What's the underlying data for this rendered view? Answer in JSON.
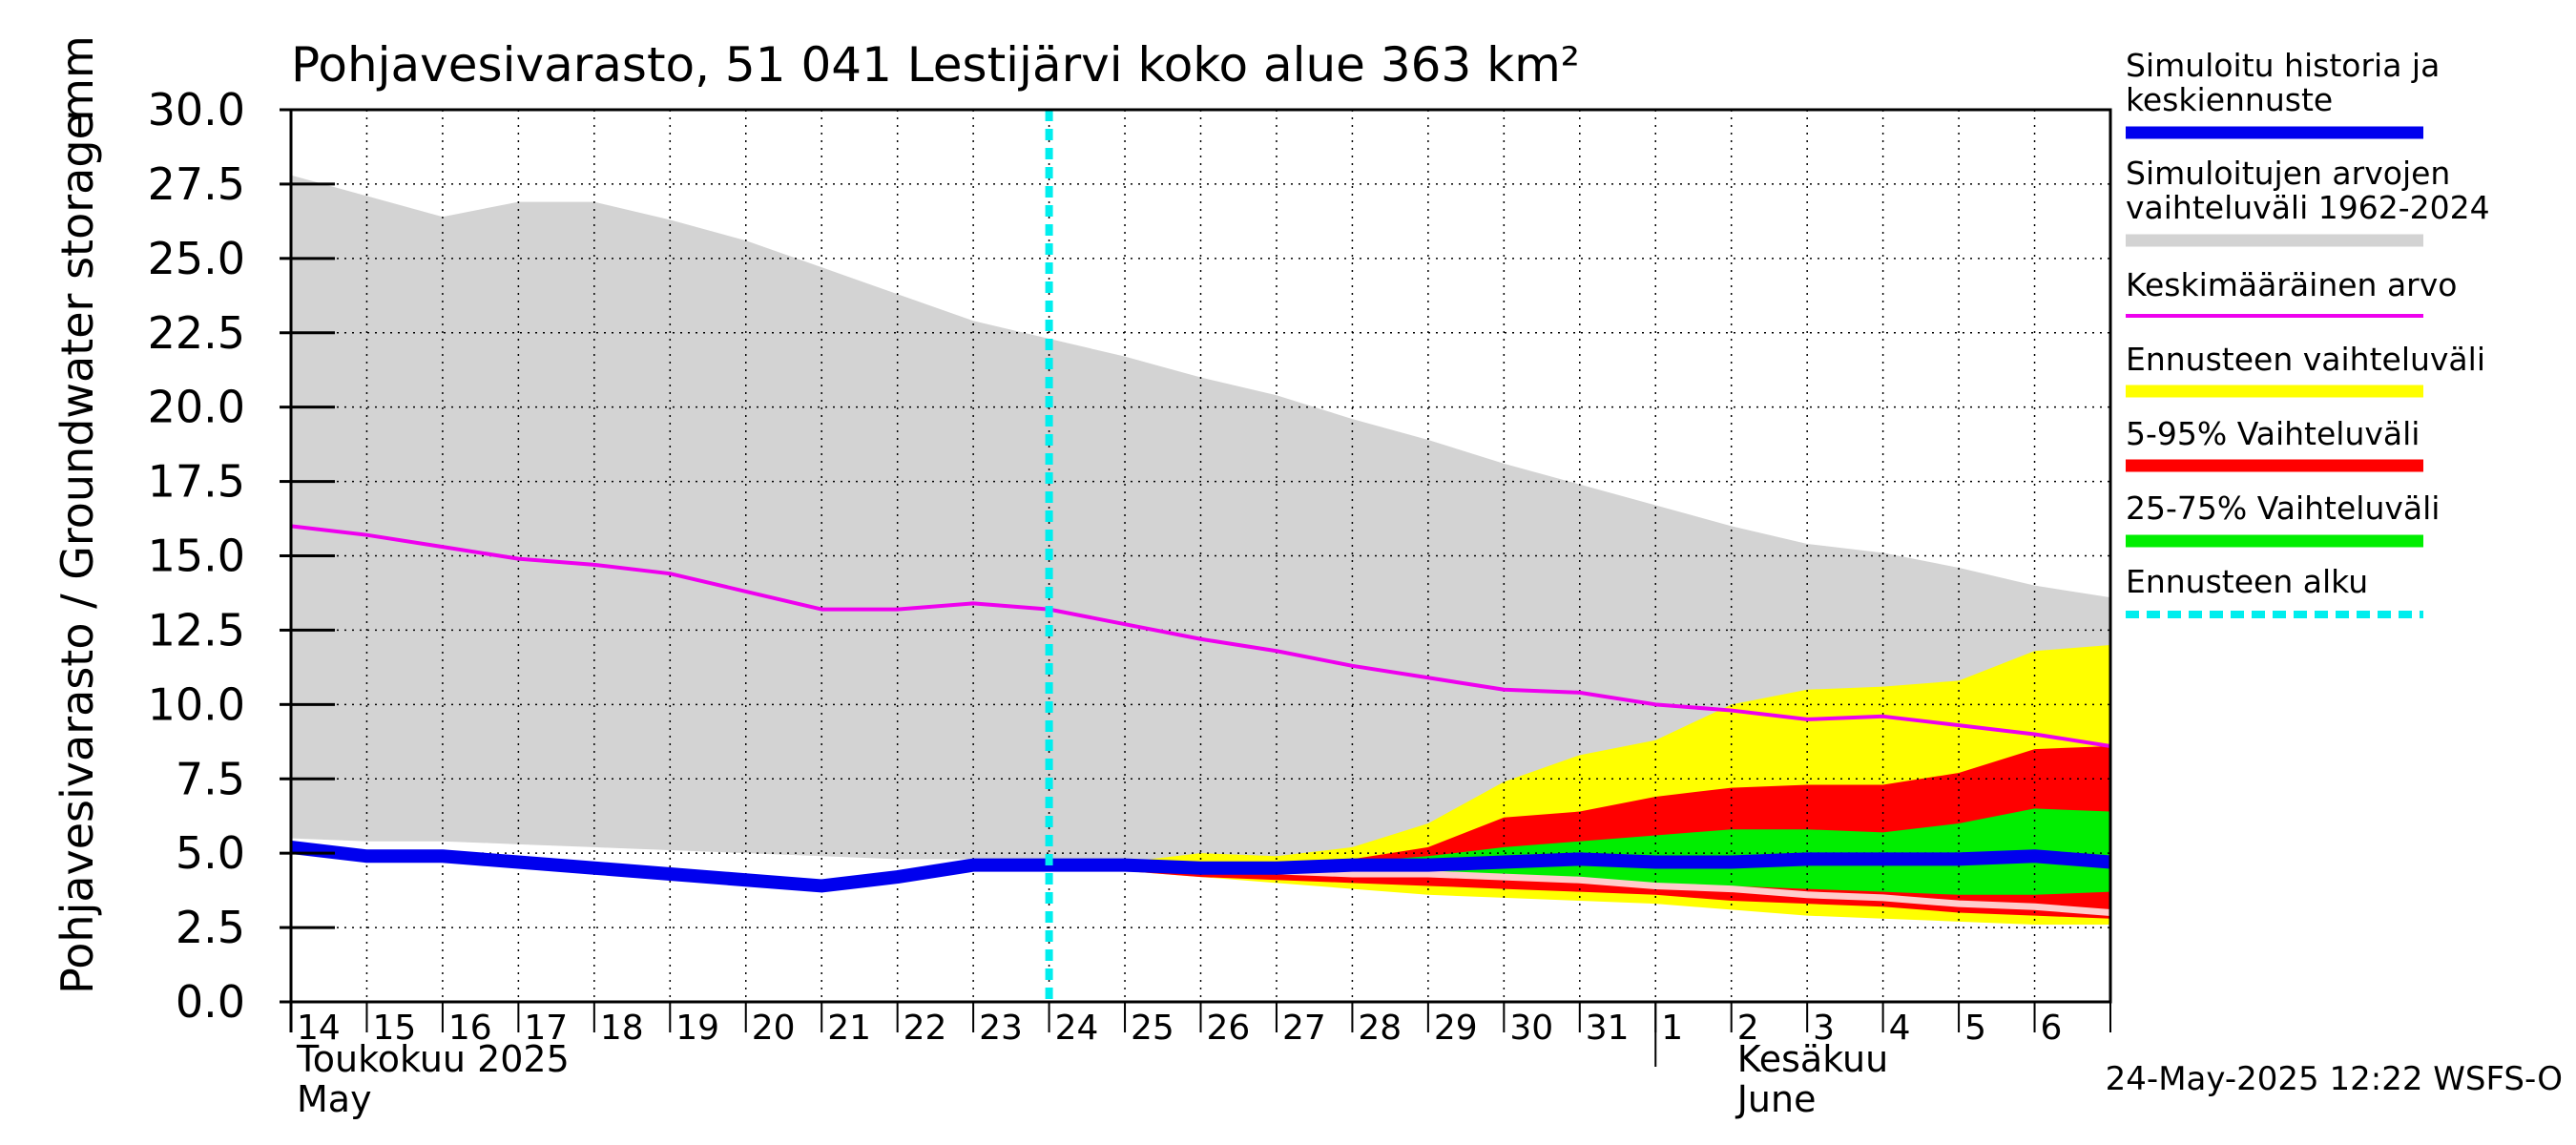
{
  "chart_data": {
    "type": "area",
    "title": "Pohjavesivarasto, 51 041 Lestijärvi koko alue 363 km²",
    "ylabel": "Pohjavesivarasto / Groundwater storage",
    "yunit": "mm",
    "ylim": [
      0,
      30
    ],
    "yticks": [
      "30.0",
      "27.5",
      "25.0",
      "22.5",
      "20.0",
      "17.5",
      "15.0",
      "12.5",
      "10.0",
      "7.5",
      "5.0",
      "2.5",
      "0.0"
    ],
    "x_start_day": 14,
    "x_end_day": 38,
    "day_labels": [
      "14",
      "15",
      "16",
      "17",
      "18",
      "19",
      "20",
      "21",
      "22",
      "23",
      "24",
      "25",
      "26",
      "27",
      "28",
      "29",
      "30",
      "31",
      "1",
      "2",
      "3",
      "4",
      "5",
      "6"
    ],
    "month_labels": [
      {
        "fi": "Toukokuu  2025",
        "en": "May",
        "day": 14
      },
      {
        "fi": "Kesäkuu",
        "en": "June",
        "day": 33
      }
    ],
    "forecast_start_day": 24,
    "grid": true,
    "legend_position": "right",
    "legend": [
      {
        "label": "Simuloitu historia ja keskiennuste",
        "color": "#0000ee",
        "style": "thick"
      },
      {
        "label": "Simuloitujen arvojen vaihteluväli 1962-2024",
        "color": "#d3d3d3",
        "style": "band"
      },
      {
        "label": "Keskimääräinen arvo",
        "color": "#ee00ee",
        "style": "line"
      },
      {
        "label": "Ennusteen vaihteluväli",
        "color": "#ffff00",
        "style": "band"
      },
      {
        "label": "5-95% Vaihteluväli",
        "color": "#ff0000",
        "style": "band"
      },
      {
        "label": "25-75% Vaihteluväli",
        "color": "#00ee00",
        "style": "band"
      },
      {
        "label": "Ennusteen alku",
        "color": "#00eeee",
        "style": "dashed"
      }
    ],
    "series": [
      {
        "key": "hist_range",
        "color": "#d3d3d3",
        "x": [
          14,
          15,
          16,
          17,
          18,
          19,
          20,
          21,
          22,
          23,
          24,
          25,
          26,
          27,
          28,
          29,
          30,
          31,
          32,
          33,
          34,
          35,
          36,
          37,
          38
        ],
        "upper": [
          27.8,
          27.1,
          26.4,
          26.9,
          26.9,
          26.3,
          25.6,
          24.7,
          23.8,
          22.9,
          22.3,
          21.7,
          21.0,
          20.4,
          19.6,
          18.9,
          18.1,
          17.4,
          16.7,
          16.0,
          15.4,
          15.1,
          14.6,
          14.0,
          13.6
        ],
        "lower": [
          5.5,
          5.4,
          5.4,
          5.3,
          5.2,
          5.1,
          5.0,
          4.9,
          4.8,
          4.8,
          4.7,
          4.6,
          4.5,
          4.4,
          4.3,
          4.2,
          4.1,
          4.0,
          3.8,
          3.6,
          3.4,
          3.2,
          3.0,
          2.8,
          2.6
        ]
      },
      {
        "key": "forecast_range",
        "color": "#ffff00",
        "x": [
          24,
          25,
          26,
          27,
          28,
          29,
          30,
          31,
          32,
          33,
          34,
          35,
          36,
          37,
          38
        ],
        "upper": [
          4.6,
          4.7,
          5.0,
          4.9,
          5.2,
          6.0,
          7.4,
          8.3,
          8.8,
          10.0,
          10.5,
          10.6,
          10.8,
          11.8,
          12.0
        ],
        "lower": [
          4.5,
          4.4,
          4.2,
          4.0,
          3.8,
          3.6,
          3.5,
          3.4,
          3.3,
          3.1,
          2.9,
          2.8,
          2.7,
          2.6,
          2.6
        ]
      },
      {
        "key": "p5_95",
        "color": "#ff0000",
        "x": [
          24,
          25,
          26,
          27,
          28,
          29,
          30,
          31,
          32,
          33,
          34,
          35,
          36,
          37,
          38
        ],
        "upper": [
          4.6,
          4.6,
          4.6,
          4.6,
          4.8,
          5.2,
          6.2,
          6.4,
          6.9,
          7.2,
          7.3,
          7.3,
          7.7,
          8.5,
          8.6
        ],
        "lower": [
          4.5,
          4.4,
          4.2,
          4.1,
          4.0,
          3.9,
          3.8,
          3.7,
          3.6,
          3.4,
          3.3,
          3.2,
          3.0,
          2.9,
          2.8
        ]
      },
      {
        "key": "p25_75",
        "color": "#00ee00",
        "x": [
          24,
          25,
          26,
          27,
          28,
          29,
          30,
          31,
          32,
          33,
          34,
          35,
          36,
          37,
          38
        ],
        "upper": [
          4.6,
          4.6,
          4.6,
          4.6,
          4.7,
          4.9,
          5.2,
          5.4,
          5.6,
          5.8,
          5.8,
          5.7,
          6.0,
          6.5,
          6.4
        ],
        "lower": [
          4.6,
          4.5,
          4.4,
          4.3,
          4.3,
          4.2,
          4.2,
          4.1,
          4.0,
          3.9,
          3.8,
          3.7,
          3.6,
          3.6,
          3.7
        ]
      },
      {
        "key": "mean",
        "color": "#ee00ee",
        "x": [
          14,
          15,
          16,
          17,
          18,
          19,
          20,
          21,
          22,
          23,
          24,
          25,
          26,
          27,
          28,
          29,
          30,
          31,
          32,
          33,
          34,
          35,
          36,
          37,
          38
        ],
        "y": [
          16.0,
          15.7,
          15.3,
          14.9,
          14.7,
          14.4,
          13.8,
          13.2,
          13.2,
          13.4,
          13.2,
          12.7,
          12.2,
          11.8,
          11.3,
          10.9,
          10.5,
          10.4,
          10.0,
          9.8,
          9.5,
          9.6,
          9.3,
          9.0,
          8.6
        ]
      },
      {
        "key": "median_lower",
        "color": "#ffcccc",
        "x": [
          24,
          25,
          26,
          27,
          28,
          29,
          30,
          31,
          32,
          33,
          34,
          35,
          36,
          37,
          38
        ],
        "y": [
          4.6,
          4.6,
          4.5,
          4.4,
          4.3,
          4.3,
          4.2,
          4.1,
          3.9,
          3.8,
          3.6,
          3.5,
          3.3,
          3.2,
          3.0
        ]
      },
      {
        "key": "simulated",
        "color": "#0000ee",
        "x": [
          14,
          15,
          16,
          17,
          18,
          19,
          20,
          21,
          22,
          23,
          24,
          25,
          26,
          27,
          28,
          29,
          30,
          31,
          32,
          33,
          34,
          35,
          36,
          37,
          38
        ],
        "y": [
          5.2,
          4.9,
          4.9,
          4.7,
          4.5,
          4.3,
          4.1,
          3.9,
          4.2,
          4.6,
          4.6,
          4.6,
          4.5,
          4.5,
          4.6,
          4.6,
          4.7,
          4.8,
          4.7,
          4.7,
          4.8,
          4.8,
          4.8,
          4.9,
          4.7
        ]
      }
    ]
  },
  "footer": {
    "timestamp": "24-May-2025 12:22 WSFS-O"
  }
}
